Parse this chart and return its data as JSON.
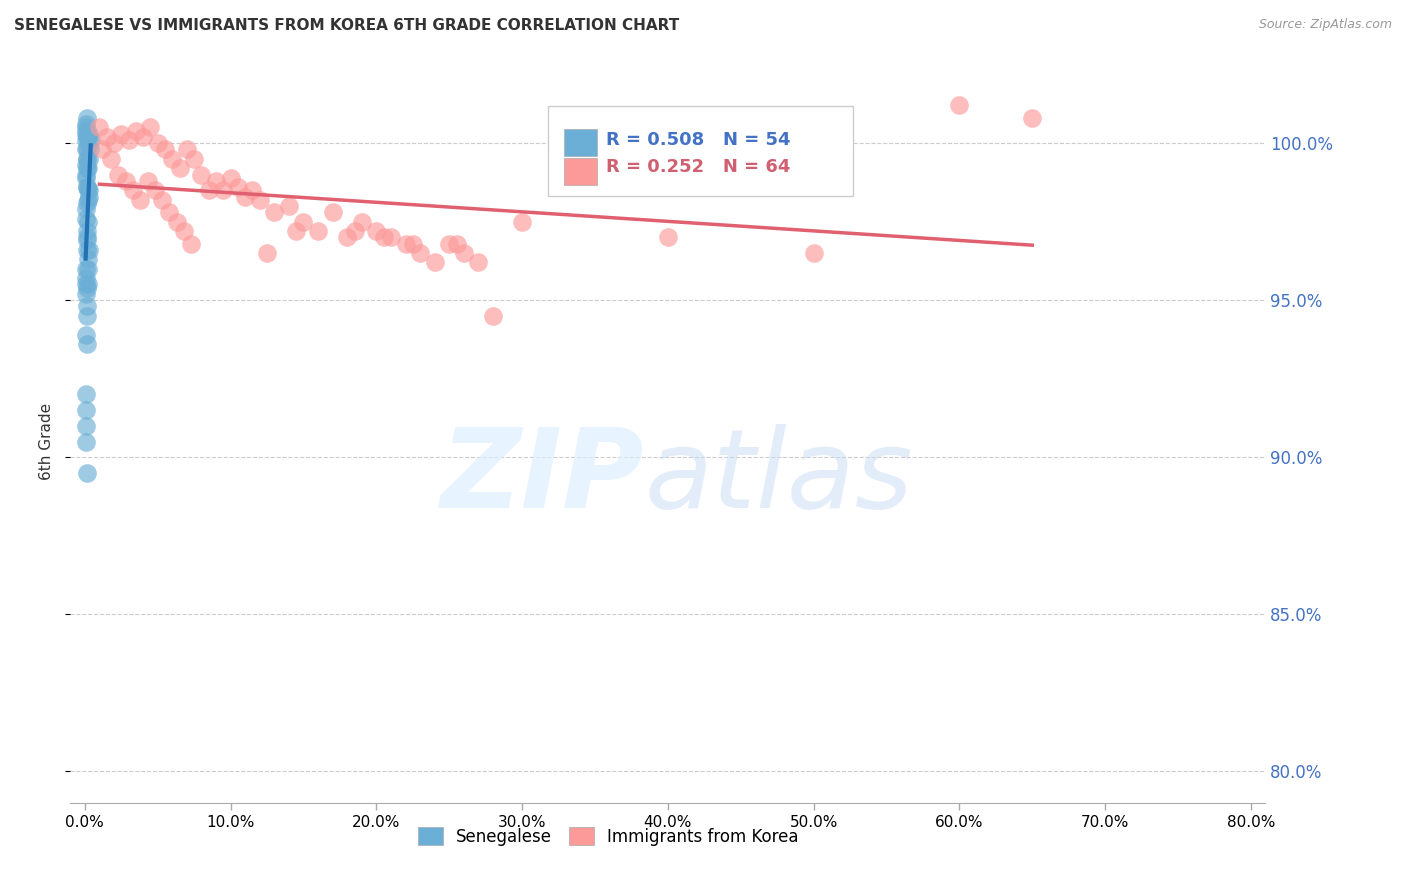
{
  "title": "SENEGALESE VS IMMIGRANTS FROM KOREA 6TH GRADE CORRELATION CHART",
  "source": "Source: ZipAtlas.com",
  "ylabel": "6th Grade",
  "xlabel_ticks": [
    "0.0%",
    "10.0%",
    "20.0%",
    "30.0%",
    "40.0%",
    "50.0%",
    "60.0%",
    "70.0%",
    "80.0%"
  ],
  "xlabel_vals": [
    0,
    10,
    20,
    30,
    40,
    50,
    60,
    70,
    80
  ],
  "ylabel_ticks": [
    "80.0%",
    "85.0%",
    "90.0%",
    "95.0%",
    "100.0%"
  ],
  "ylabel_vals": [
    80,
    85,
    90,
    95,
    100
  ],
  "ylim": [
    79,
    102
  ],
  "xlim": [
    -1,
    81
  ],
  "blue_R": 0.508,
  "blue_N": 54,
  "pink_R": 0.252,
  "pink_N": 64,
  "blue_color": "#6baed6",
  "pink_color": "#fb9a99",
  "blue_line_color": "#2171b5",
  "pink_line_color": "#e06070",
  "legend_label_blue": "Senegalese",
  "legend_label_pink": "Immigrants from Korea",
  "blue_x": [
    0.05,
    0.08,
    0.1,
    0.1,
    0.1,
    0.1,
    0.1,
    0.12,
    0.12,
    0.12,
    0.15,
    0.15,
    0.15,
    0.15,
    0.18,
    0.18,
    0.18,
    0.2,
    0.2,
    0.2,
    0.22,
    0.22,
    0.25,
    0.25,
    0.28,
    0.3,
    0.3,
    0.35,
    0.4,
    0.05,
    0.06,
    0.06,
    0.08,
    0.08,
    0.1,
    0.1,
    0.12,
    0.15,
    0.18,
    0.2,
    0.08,
    0.1,
    0.12,
    0.15,
    0.18,
    0.2,
    0.22,
    0.25,
    0.1,
    0.12,
    0.06,
    0.08,
    0.1,
    0.15
  ],
  "blue_y": [
    100.6,
    100.4,
    100.5,
    100.3,
    100.1,
    99.8,
    99.3,
    99.8,
    99.5,
    98.6,
    100.8,
    100.2,
    99.5,
    97.0,
    99.2,
    98.6,
    98.1,
    100.2,
    98.5,
    97.5,
    99.2,
    98.2,
    100.1,
    98.3,
    99.5,
    100.3,
    98.5,
    99.8,
    100.1,
    97.6,
    99.0,
    96.0,
    98.9,
    95.7,
    97.9,
    95.2,
    97.2,
    94.8,
    96.9,
    96.3,
    93.9,
    95.5,
    93.6,
    94.5,
    96.6,
    96.0,
    95.5,
    96.6,
    92.0,
    95.4,
    91.5,
    90.5,
    91.0,
    89.5
  ],
  "pink_x": [
    1.0,
    1.2,
    1.5,
    1.8,
    2.0,
    2.3,
    2.5,
    2.8,
    3.0,
    3.3,
    3.5,
    3.8,
    4.0,
    4.3,
    4.5,
    4.8,
    5.0,
    5.3,
    5.5,
    5.8,
    6.0,
    6.3,
    6.5,
    6.8,
    7.0,
    7.3,
    7.5,
    8.0,
    8.5,
    9.0,
    9.5,
    10.0,
    10.5,
    11.0,
    11.5,
    12.0,
    12.5,
    13.0,
    14.0,
    14.5,
    15.0,
    16.0,
    17.0,
    18.0,
    18.5,
    19.0,
    20.0,
    20.5,
    21.0,
    22.0,
    22.5,
    23.0,
    24.0,
    25.0,
    25.5,
    26.0,
    27.0,
    28.0,
    30.0,
    35.0,
    40.0,
    50.0,
    60.0,
    65.0
  ],
  "pink_y": [
    100.5,
    99.8,
    100.2,
    99.5,
    100.0,
    99.0,
    100.3,
    98.8,
    100.1,
    98.5,
    100.4,
    98.2,
    100.2,
    98.8,
    100.5,
    98.5,
    100.0,
    98.2,
    99.8,
    97.8,
    99.5,
    97.5,
    99.2,
    97.2,
    99.8,
    96.8,
    99.5,
    99.0,
    98.5,
    98.8,
    98.5,
    98.9,
    98.6,
    98.3,
    98.5,
    98.2,
    96.5,
    97.8,
    98.0,
    97.2,
    97.5,
    97.2,
    97.8,
    97.0,
    97.2,
    97.5,
    97.2,
    97.0,
    97.0,
    96.8,
    96.8,
    96.5,
    96.2,
    96.8,
    96.8,
    96.5,
    96.2,
    94.5,
    97.5,
    99.2,
    97.0,
    96.5,
    101.2,
    100.8
  ]
}
